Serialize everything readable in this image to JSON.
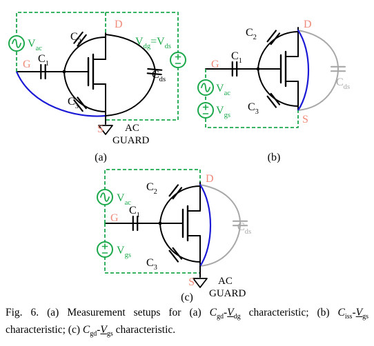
{
  "colors": {
    "black": "#000000",
    "green": "#1aa84a",
    "salmon": "#f08a7a",
    "blue": "#1a1ad6",
    "gray": "#a8a8a8"
  },
  "labels": {
    "drain": "D",
    "gate": "G",
    "source": "S",
    "c": "C",
    "sub1": "1",
    "sub2": "2",
    "sub3": "3",
    "sub_ds": "ds",
    "v": "V",
    "sub_ac": "ac",
    "sub_gs": "gs",
    "sub_dg": "dg",
    "sub_ds_v": "ds",
    "equals": "=",
    "ac": "AC",
    "guard": "GUARD",
    "plus": "+",
    "minus": "−"
  },
  "panels": {
    "a": "(a)",
    "b": "(b)",
    "c": "(c)"
  },
  "caption": {
    "lead": "Fig. 6. (a) Measurement setups for (a) ",
    "c_a": "C",
    "c_a_sub": "gd",
    "dash1": "-",
    "v_a": "V",
    "v_a_sub": "dg",
    "mid1": " characteristic; (b) ",
    "c_b": "C",
    "c_b_sub": "iss",
    "dash2": "-",
    "v_b": "V",
    "v_b_sub": "gs",
    "mid2": " characteristic; (c) ",
    "c_c": "C",
    "c_c_sub": "gd",
    "dash3": "-",
    "v_c": "V",
    "v_c_sub": "gs",
    "tail": " characteristic."
  }
}
